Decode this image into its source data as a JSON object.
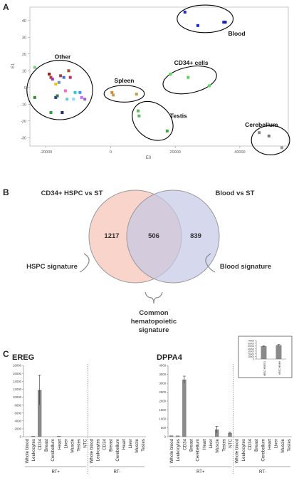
{
  "panel_a": {
    "letter": "A",
    "chart_data": {
      "type": "scatter",
      "xlabel": "E0",
      "ylabel": "E1",
      "xlim": [
        -25000,
        55000
      ],
      "ylim": [
        -35,
        48
      ],
      "xticks": [
        -20000,
        0,
        20000,
        40000
      ],
      "xtick_labels": [
        "-20000",
        "0",
        "20000",
        "40000"
      ],
      "yticks": [
        -30,
        -20,
        -10,
        0,
        10,
        20,
        30,
        40
      ],
      "ytick_labels": [
        "-30",
        "-20",
        "-10",
        "0",
        "10",
        "20",
        "30",
        "40"
      ],
      "groups": [
        {
          "label": "Other",
          "points": [
            {
              "x": -23500,
              "y": 12,
              "color": "#7bd07b"
            },
            {
              "x": -23500,
              "y": -6,
              "color": "#2f8f2f"
            },
            {
              "x": -19000,
              "y": 8,
              "color": "#8b1a1a"
            },
            {
              "x": -18500,
              "y": 6,
              "color": "#cc3333"
            },
            {
              "x": -18000,
              "y": 5,
              "color": "#9933cc"
            },
            {
              "x": -17000,
              "y": 2,
              "color": "#e6c619"
            },
            {
              "x": -15500,
              "y": 7,
              "color": "#b23a48"
            },
            {
              "x": -14500,
              "y": 6,
              "color": "#3b6fd1"
            },
            {
              "x": -13000,
              "y": 10,
              "color": "#a0522d"
            },
            {
              "x": -12500,
              "y": 6,
              "color": "#c03060"
            },
            {
              "x": -16000,
              "y": 3,
              "color": "#6a8fd8"
            },
            {
              "x": -14000,
              "y": -2,
              "color": "#ff66cc"
            },
            {
              "x": -11000,
              "y": -3,
              "color": "#22cccc"
            },
            {
              "x": -9500,
              "y": -3,
              "color": "#3399ff"
            },
            {
              "x": -9000,
              "y": -6,
              "color": "#cc66ff"
            },
            {
              "x": -17000,
              "y": -6,
              "color": "#1a3d8f"
            },
            {
              "x": -16500,
              "y": -5,
              "color": "#3a7d3a"
            },
            {
              "x": -13500,
              "y": -7,
              "color": "#66cccc"
            },
            {
              "x": -11500,
              "y": -7,
              "color": "#8fd8ff"
            },
            {
              "x": -8000,
              "y": -7,
              "color": "#9966cc"
            },
            {
              "x": -18500,
              "y": -15,
              "color": "#2e9e4b"
            },
            {
              "x": -15000,
              "y": -15,
              "color": "#1a2e6e"
            }
          ]
        },
        {
          "label": "Spleen",
          "points": [
            {
              "x": 400,
              "y": -3,
              "color": "#e38b1a"
            },
            {
              "x": 800,
              "y": -4.5,
              "color": "#c9a04a"
            },
            {
              "x": 8000,
              "y": -4,
              "color": "#c99a4a"
            }
          ]
        },
        {
          "label": "Testis",
          "points": [
            {
              "x": 8500,
              "y": -14,
              "color": "#5bbf5b"
            },
            {
              "x": 8800,
              "y": -17,
              "color": "#5bbf5b"
            },
            {
              "x": 17500,
              "y": -26,
              "color": "#3da63d"
            }
          ]
        },
        {
          "label": "CD34+ cells",
          "points": [
            {
              "x": 18500,
              "y": 8,
              "color": "#5bd35b"
            },
            {
              "x": 24000,
              "y": 6,
              "color": "#5bd35b"
            },
            {
              "x": 30500,
              "y": 1,
              "color": "#5bd35b"
            }
          ]
        },
        {
          "label": "Blood",
          "points": [
            {
              "x": 23000,
              "y": 45,
              "color": "#1a2ecc"
            },
            {
              "x": 27000,
              "y": 37,
              "color": "#1a2ecc"
            },
            {
              "x": 35000,
              "y": 39,
              "color": "#1a2ecc"
            },
            {
              "x": 35500,
              "y": 39,
              "color": "#142699"
            }
          ]
        },
        {
          "label": "Cerebellum",
          "points": [
            {
              "x": 46000,
              "y": -27,
              "color": "#888888"
            },
            {
              "x": 49000,
              "y": -29,
              "color": "#777777"
            },
            {
              "x": 53000,
              "y": -36,
              "color": "#999999"
            }
          ]
        }
      ]
    }
  },
  "panel_b": {
    "letter": "B",
    "left_set_label": "CD34+ HSPC vs ST",
    "right_set_label": "Blood vs ST",
    "left_only": "1217",
    "intersection": "506",
    "right_only": "839",
    "left_signature": "HSPC signature",
    "right_signature": "Blood signature",
    "common_signature_lines": [
      "Common",
      "hematopoietic",
      "signature"
    ],
    "colors": {
      "left_fill": "#f7c5b8",
      "right_fill": "#c4c8e6"
    }
  },
  "panel_c": {
    "letter": "C",
    "chart_data": [
      {
        "type": "bar",
        "title": "EREG",
        "ylim": [
          0,
          18000
        ],
        "yticks": [
          0,
          2000,
          4000,
          6000,
          8000,
          10000,
          12000,
          14000,
          16000,
          18000
        ],
        "ytick_labels": [
          "0",
          "2000",
          "4000",
          "6000",
          "8000",
          "10000",
          "12000",
          "14000",
          "16000",
          "18000"
        ],
        "categories": [
          "Whole blood",
          "Leukocytes",
          "CD34",
          "Breast",
          "Cerebellum",
          "Heart",
          "Liver",
          "Muscle",
          "Testes",
          "NTC",
          "Whole blood",
          "Leukocytes",
          "CD34",
          "Breast",
          "Cerebellum",
          "Heart",
          "Liver",
          "Muscle",
          "Testes"
        ],
        "values": [
          0,
          150,
          11800,
          0,
          0,
          150,
          0,
          0,
          0,
          0,
          0,
          0,
          0,
          0,
          0,
          0,
          0,
          0,
          0
        ],
        "errors": [
          0,
          0,
          3800,
          0,
          0,
          0,
          0,
          0,
          0,
          0,
          0,
          0,
          0,
          0,
          0,
          0,
          0,
          0,
          0
        ],
        "groups": [
          {
            "label": "RT+",
            "count": 10
          },
          {
            "label": "RT-",
            "count": 9
          }
        ]
      },
      {
        "type": "bar",
        "title": "DPPA4",
        "ylim": [
          0,
          4000
        ],
        "yticks": [
          0,
          500,
          1000,
          1500,
          2000,
          2500,
          3000,
          3500,
          4000
        ],
        "ytick_labels": [
          "0",
          "500",
          "1000",
          "1500",
          "2000",
          "2500",
          "3000",
          "3500",
          "4000"
        ],
        "categories": [
          "Whole blood",
          "Leukocytes",
          "CD34",
          "Breast",
          "Cerebellum",
          "Heart",
          "Liver",
          "Muscle",
          "Testes",
          "NTC",
          "Whole blood",
          "Leukocytes",
          "CD34",
          "Breast",
          "Cerebellum",
          "Heart",
          "Liver",
          "Muscle",
          "Testes"
        ],
        "values": [
          60,
          50,
          3200,
          0,
          0,
          0,
          0,
          400,
          0,
          200,
          0,
          0,
          0,
          0,
          0,
          0,
          0,
          0,
          0
        ],
        "errors": [
          0,
          0,
          200,
          0,
          0,
          0,
          0,
          180,
          0,
          60,
          0,
          0,
          0,
          0,
          0,
          0,
          0,
          0,
          0
        ],
        "groups": [
          {
            "label": "RT+",
            "count": 10
          },
          {
            "label": "RT-",
            "count": 9
          }
        ]
      },
      {
        "type": "bar",
        "title": "",
        "ylim": [
          0,
          70000
        ],
        "yticks": [
          0,
          10000,
          20000,
          30000,
          40000,
          50000,
          60000,
          70000
        ],
        "ytick_labels": [
          "0",
          "10000",
          "20000",
          "30000",
          "40000",
          "50000",
          "60000",
          "70000"
        ],
        "categories": [
          "hESC H9/ES1",
          "hESC H9/H9"
        ],
        "values": [
          48000,
          52000
        ],
        "errors": [
          2500,
          2500
        ]
      }
    ]
  }
}
